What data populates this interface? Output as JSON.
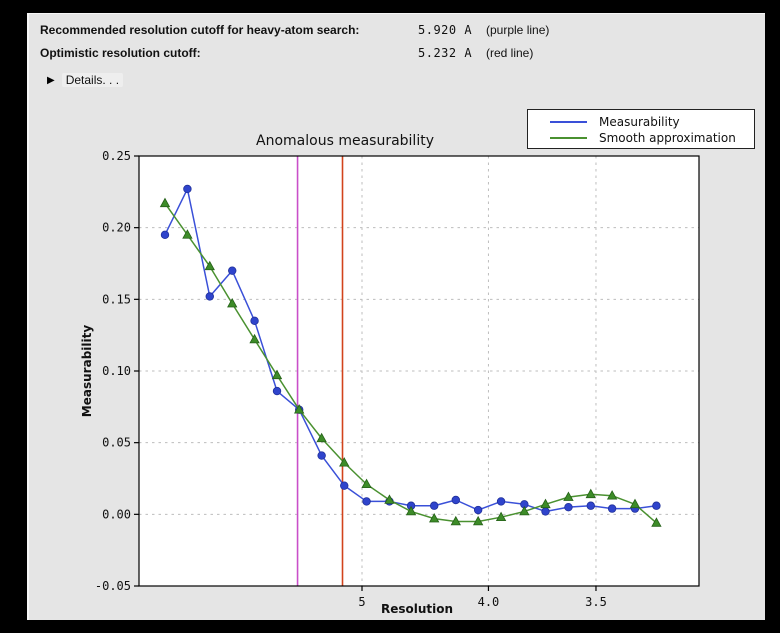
{
  "window": {
    "frame_color": "#000000",
    "panel_bg": "#e5e5e5"
  },
  "header": {
    "rows": [
      {
        "label": "Recommended resolution cutoff for heavy-atom search:",
        "value": "5.920 A",
        "note": "(purple line)"
      },
      {
        "label": "Optimistic resolution cutoff:",
        "value": "5.232 A",
        "note": "(red line)"
      }
    ],
    "details_label": "Details. . .",
    "disclosure_icon": "▶"
  },
  "chart_data": {
    "type": "line",
    "title": "Anomalous measurability",
    "xlabel": "Resolution",
    "ylabel": "Measurability",
    "x_axis_note": "resolution in Angstroms, decreasing left to right, spacing proportional to 1/d^2",
    "x_resolution_A": [
      14.22,
      10.58,
      8.8,
      7.69,
      6.92,
      6.34,
      5.89,
      5.52,
      5.21,
      4.95,
      4.72,
      4.53,
      4.35,
      4.2,
      4.06,
      3.93,
      3.81,
      3.71,
      3.61,
      3.52,
      3.44,
      3.36,
      3.29
    ],
    "series": [
      {
        "name": "Measurability",
        "color": "#3a50d8",
        "marker_fill": "#2f44cc",
        "marker": "circle",
        "values": [
          0.195,
          0.227,
          0.152,
          0.17,
          0.135,
          0.086,
          0.073,
          0.041,
          0.02,
          0.009,
          0.009,
          0.006,
          0.006,
          0.01,
          0.003,
          0.009,
          0.007,
          0.002,
          0.005,
          0.006,
          0.004,
          0.004,
          0.006
        ]
      },
      {
        "name": "Smooth approximation",
        "color": "#4a9130",
        "marker_fill": "#3d8c28",
        "marker": "triangle",
        "values": [
          0.217,
          0.195,
          0.173,
          0.147,
          0.122,
          0.097,
          0.073,
          0.053,
          0.036,
          0.021,
          0.01,
          0.002,
          -0.003,
          -0.005,
          -0.005,
          -0.002,
          0.002,
          0.007,
          0.012,
          0.014,
          0.013,
          0.007,
          -0.006
        ]
      }
    ],
    "vlines": [
      {
        "resolution_A": 5.92,
        "color": "#c94fc9",
        "name": "purple line"
      },
      {
        "resolution_A": 5.232,
        "color": "#d2431c",
        "name": "red line"
      }
    ],
    "x_ticks": [
      {
        "label": "5",
        "d": 5.0
      },
      {
        "label": "4.0",
        "d": 4.0
      },
      {
        "label": "3.5",
        "d": 3.5
      }
    ],
    "y_tick_labels": [
      "-0.05",
      "0.00",
      "0.05",
      "0.10",
      "0.15",
      "0.20",
      "0.25"
    ],
    "y_tick_values": [
      -0.05,
      0.0,
      0.05,
      0.1,
      0.15,
      0.2,
      0.25
    ],
    "ylim": [
      -0.05,
      0.25
    ],
    "grid": true,
    "legend_position": "top-right"
  }
}
